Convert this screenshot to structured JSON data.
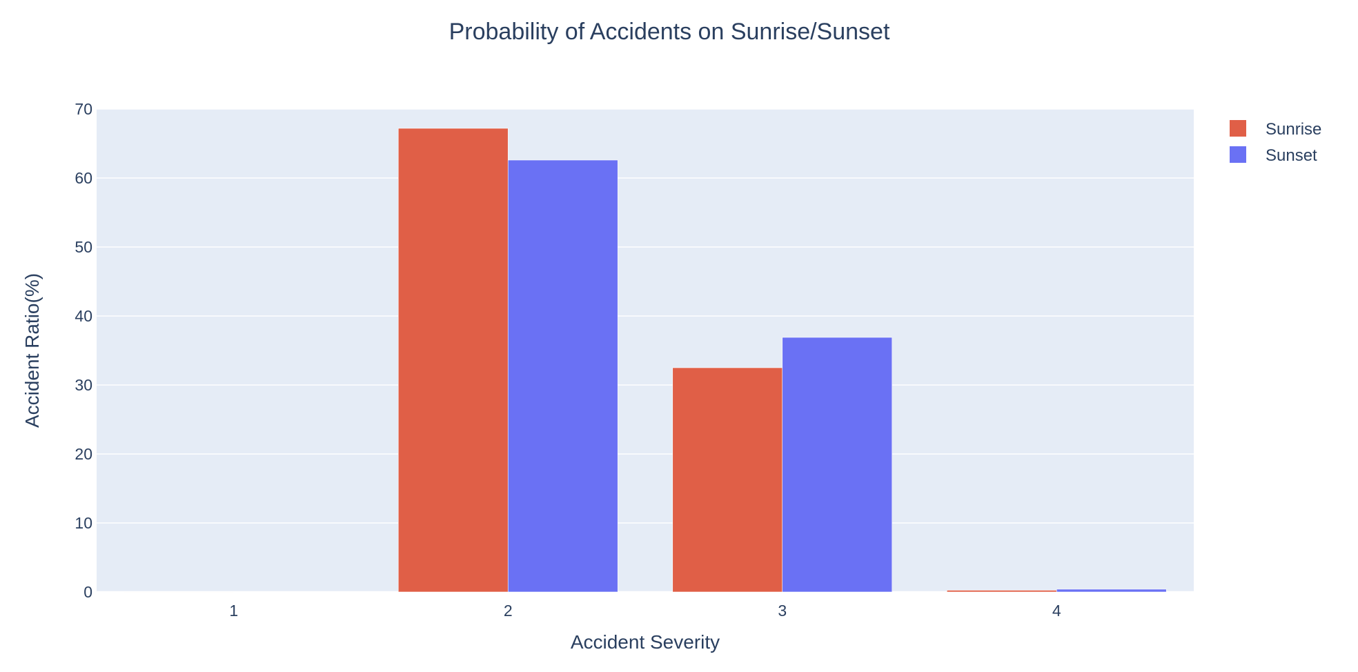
{
  "chart_data": {
    "type": "bar",
    "title": "Probability of Accidents on Sunrise/Sunset",
    "xlabel": "Accident Severity",
    "ylabel": "Accident Ratio(%)",
    "categories": [
      "1",
      "2",
      "3",
      "4"
    ],
    "series": [
      {
        "name": "Sunrise",
        "color": "#e05f47",
        "values": [
          0.05,
          67.2,
          32.5,
          0.25
        ]
      },
      {
        "name": "Sunset",
        "color": "#6a71f4",
        "values": [
          0.03,
          62.6,
          36.9,
          0.4
        ]
      }
    ],
    "ylim": [
      0,
      70
    ],
    "yticks": [
      0,
      10,
      20,
      30,
      40,
      50,
      60,
      70
    ],
    "grid": true,
    "legend": "top-right",
    "colors": {
      "plot_bg": "#e5ecf6",
      "grid": "#ffffff",
      "text": "#2a3f5f"
    }
  }
}
